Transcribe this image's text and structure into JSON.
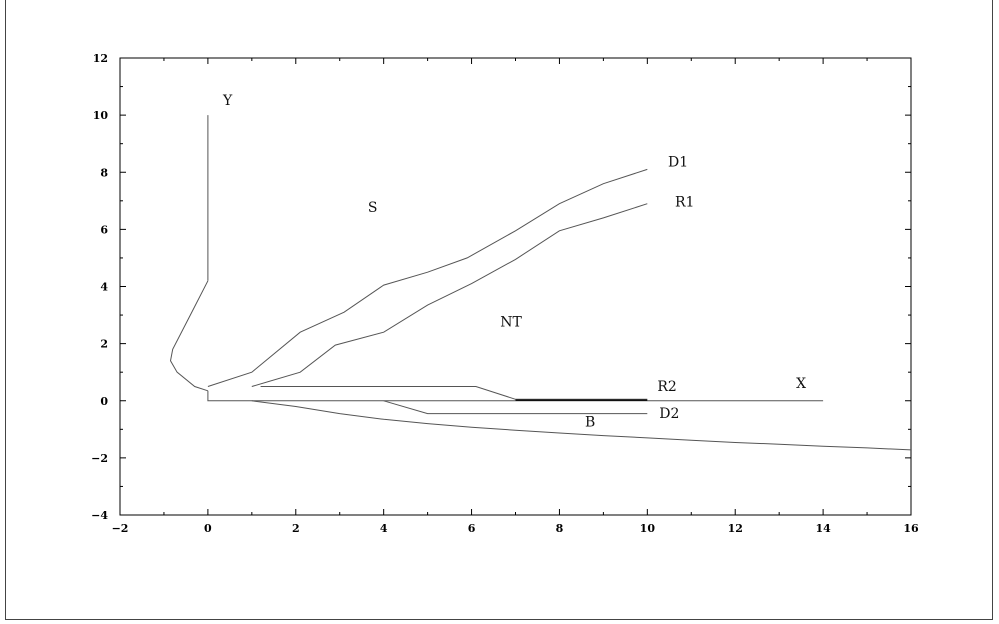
{
  "chart_data": {
    "type": "line",
    "title": "",
    "xlabel": "",
    "ylabel": "",
    "xlim": [
      -2,
      16
    ],
    "ylim": [
      -4,
      12
    ],
    "x_ticks": [
      -2,
      0,
      2,
      4,
      6,
      8,
      10,
      12,
      14,
      16
    ],
    "y_ticks": [
      -4,
      -2,
      0,
      2,
      4,
      6,
      8,
      10,
      12
    ],
    "x_tick_labels": [
      "−2",
      "0",
      "2",
      "4",
      "6",
      "8",
      "10",
      "12",
      "14",
      "16"
    ],
    "y_tick_labels": [
      "−4",
      "−2",
      "0",
      "2",
      "4",
      "6",
      "8",
      "10",
      "12"
    ],
    "grid": false,
    "series": [
      {
        "id": "y-axis-line",
        "points": [
          [
            0,
            10
          ],
          [
            0,
            4.2
          ]
        ],
        "style": "normal"
      },
      {
        "id": "left-bulge",
        "points": [
          [
            0,
            4.2
          ],
          [
            -0.4,
            3.0
          ],
          [
            -0.8,
            1.8
          ],
          [
            -0.85,
            1.4
          ],
          [
            -0.7,
            1.0
          ],
          [
            -0.3,
            0.5
          ],
          [
            0,
            0.35
          ]
        ],
        "style": "normal"
      },
      {
        "id": "x-axis-line",
        "points": [
          [
            0,
            0.35
          ],
          [
            0,
            0
          ],
          [
            14,
            0
          ]
        ],
        "style": "normal"
      },
      {
        "id": "D1",
        "points": [
          [
            0,
            0.5
          ],
          [
            1,
            1.0
          ],
          [
            2.1,
            2.4
          ],
          [
            3.1,
            3.1
          ],
          [
            4,
            4.05
          ],
          [
            5,
            4.5
          ],
          [
            5.9,
            5.0
          ],
          [
            7,
            5.95
          ],
          [
            8,
            6.9
          ],
          [
            9,
            7.6
          ],
          [
            10,
            8.1
          ]
        ],
        "style": "normal"
      },
      {
        "id": "R1",
        "points": [
          [
            1,
            0.5
          ],
          [
            2.1,
            1.0
          ],
          [
            2.9,
            1.95
          ],
          [
            4,
            2.4
          ],
          [
            5,
            3.35
          ],
          [
            6,
            4.1
          ],
          [
            7,
            4.95
          ],
          [
            8,
            5.95
          ],
          [
            9,
            6.4
          ],
          [
            10,
            6.9
          ]
        ],
        "style": "normal"
      },
      {
        "id": "R2",
        "points": [
          [
            1.2,
            0.5
          ],
          [
            6.1,
            0.5
          ],
          [
            7,
            0.05
          ],
          [
            10,
            0.05
          ]
        ],
        "style": "normal"
      },
      {
        "id": "R2-bold",
        "points": [
          [
            7,
            0.02
          ],
          [
            10,
            0.02
          ]
        ],
        "style": "bold"
      },
      {
        "id": "D2",
        "points": [
          [
            4,
            0
          ],
          [
            5,
            -0.45
          ],
          [
            10,
            -0.45
          ]
        ],
        "style": "normal"
      },
      {
        "id": "lower-curve",
        "points": [
          [
            1,
            0
          ],
          [
            2,
            -0.2
          ],
          [
            3,
            -0.45
          ],
          [
            4,
            -0.65
          ],
          [
            5,
            -0.8
          ],
          [
            6,
            -0.93
          ],
          [
            7,
            -1.03
          ],
          [
            8,
            -1.13
          ],
          [
            9,
            -1.22
          ],
          [
            10,
            -1.3
          ],
          [
            11,
            -1.38
          ],
          [
            12,
            -1.46
          ],
          [
            13,
            -1.52
          ],
          [
            14,
            -1.59
          ],
          [
            15,
            -1.65
          ],
          [
            16,
            -1.72
          ]
        ],
        "style": "normal"
      }
    ],
    "annotations": [
      {
        "text": "Y",
        "x": 0.45,
        "y": 10.35
      },
      {
        "text": "S",
        "x": 3.75,
        "y": 6.6
      },
      {
        "text": "D1",
        "x": 10.7,
        "y": 8.2
      },
      {
        "text": "R1",
        "x": 10.85,
        "y": 6.8
      },
      {
        "text": "NT",
        "x": 6.9,
        "y": 2.6
      },
      {
        "text": "R2",
        "x": 10.45,
        "y": 0.35
      },
      {
        "text": "X",
        "x": 13.5,
        "y": 0.45
      },
      {
        "text": "B",
        "x": 8.7,
        "y": -0.9
      },
      {
        "text": "D2",
        "x": 10.5,
        "y": -0.6
      }
    ]
  }
}
